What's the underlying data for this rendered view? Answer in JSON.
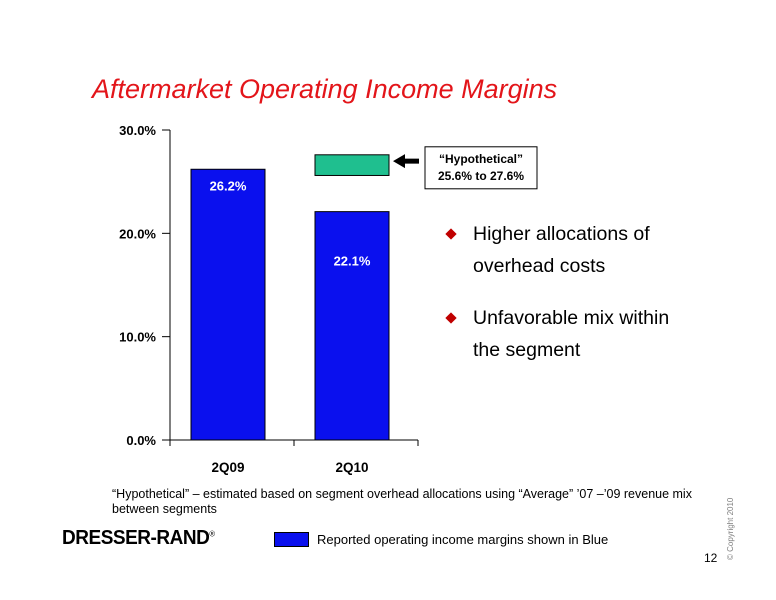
{
  "title": "Aftermarket Operating Income Margins",
  "chart_data": {
    "type": "bar",
    "categories": [
      "2Q09",
      "2Q10"
    ],
    "values": [
      26.2,
      22.1
    ],
    "data_labels": [
      "26.2%",
      "22.1%"
    ],
    "ylim": [
      0,
      30
    ],
    "yticks": [
      "0.0%",
      "10.0%",
      "20.0%",
      "30.0%"
    ],
    "ytick_values": [
      0,
      10,
      20,
      30
    ],
    "bar_color": "#0a10ee",
    "hypothetical": {
      "category": "2Q10",
      "low": 25.6,
      "high": 27.6,
      "color": "#1fbf8f",
      "label_line1": "“Hypothetical”",
      "label_line2": "25.6% to 27.6%"
    },
    "grid": false
  },
  "bullets": [
    "Higher allocations of overhead costs",
    "Unfavorable mix within the segment"
  ],
  "footnote": "“Hypothetical” – estimated based on segment overhead allocations using “Average” ’07 –’09 revenue mix between segments",
  "legend": {
    "label": "Reported operating income margins shown in Blue",
    "color": "#0a10ee"
  },
  "logo": {
    "text": "DRESSER-RAND",
    "mark": "®"
  },
  "page_number": "12",
  "copyright": "© Copyright 2010",
  "colors": {
    "title": "#e3151a",
    "bullet": "#c00000"
  }
}
